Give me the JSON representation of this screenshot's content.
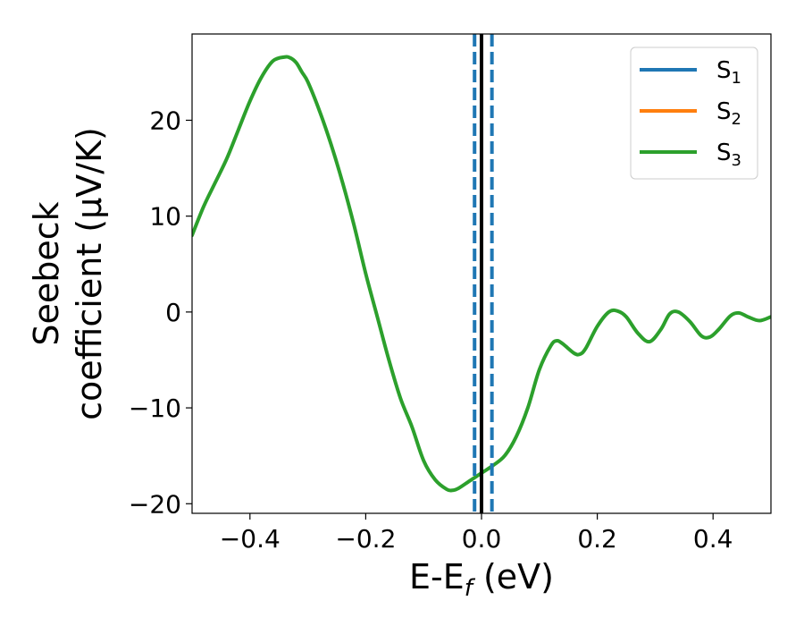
{
  "chart_data": {
    "type": "line",
    "xlabel": "E-E",
    "xlabel_sub": "f",
    "xlabel_unit": " (eV)",
    "ylabel_line1": "Seebeck",
    "ylabel_line2": "coefficient  (μV/K)",
    "xlim": [
      -0.5,
      0.5
    ],
    "ylim": [
      -21,
      29
    ],
    "xticks": [
      -0.4,
      -0.2,
      0.0,
      0.2,
      0.4
    ],
    "xtick_labels": [
      "−0.4",
      "−0.2",
      "0.0",
      "0.2",
      "0.4"
    ],
    "yticks": [
      -20,
      -10,
      0,
      10,
      20
    ],
    "ytick_labels": [
      "−20",
      "−10",
      "0",
      "10",
      "20"
    ],
    "grid": false,
    "legend": {
      "placement": "top-right",
      "entries": [
        {
          "label": "S",
          "sub": "1",
          "color": "#1f77b4"
        },
        {
          "label": "S",
          "sub": "2",
          "color": "#ff7f0e"
        },
        {
          "label": "S",
          "sub": "3",
          "color": "#2ca02c"
        }
      ]
    },
    "vlines": [
      {
        "x": -0.012,
        "style": "dashed",
        "color": "#1f77b4"
      },
      {
        "x": 0.018,
        "style": "dashed",
        "color": "#1f77b4"
      },
      {
        "x": 0.0,
        "style": "solid",
        "color": "#000000"
      }
    ],
    "series": [
      {
        "name": "S",
        "sub": "3",
        "color": "#2ca02c",
        "x": [
          -0.5,
          -0.48,
          -0.46,
          -0.44,
          -0.42,
          -0.4,
          -0.38,
          -0.36,
          -0.34,
          -0.33,
          -0.32,
          -0.31,
          -0.3,
          -0.28,
          -0.26,
          -0.24,
          -0.22,
          -0.2,
          -0.18,
          -0.16,
          -0.14,
          -0.12,
          -0.1,
          -0.08,
          -0.06,
          -0.05,
          -0.04,
          -0.02,
          0.0,
          0.02,
          0.04,
          0.06,
          0.08,
          0.1,
          0.12,
          0.13,
          0.14,
          0.16,
          0.17,
          0.18,
          0.2,
          0.22,
          0.235,
          0.25,
          0.27,
          0.29,
          0.31,
          0.325,
          0.34,
          0.36,
          0.38,
          0.395,
          0.41,
          0.43,
          0.445,
          0.46,
          0.48,
          0.5
        ],
        "values": [
          8,
          11,
          13.5,
          16,
          19,
          22,
          24.5,
          26.2,
          26.6,
          26.5,
          26,
          25,
          24,
          21,
          17.5,
          13.5,
          9,
          4,
          -0.5,
          -5,
          -9,
          -12,
          -15.5,
          -17.5,
          -18.5,
          -18.6,
          -18.4,
          -17.6,
          -16.8,
          -16,
          -15,
          -13,
          -10,
          -6,
          -3.5,
          -3,
          -3.3,
          -4.3,
          -4.4,
          -3.8,
          -1.5,
          0,
          0.1,
          -0.5,
          -2.2,
          -3.1,
          -1.8,
          -0.2,
          0,
          -1,
          -2.5,
          -2.6,
          -1.8,
          -0.4,
          -0.1,
          -0.5,
          -0.9,
          -0.5
        ]
      }
    ]
  }
}
